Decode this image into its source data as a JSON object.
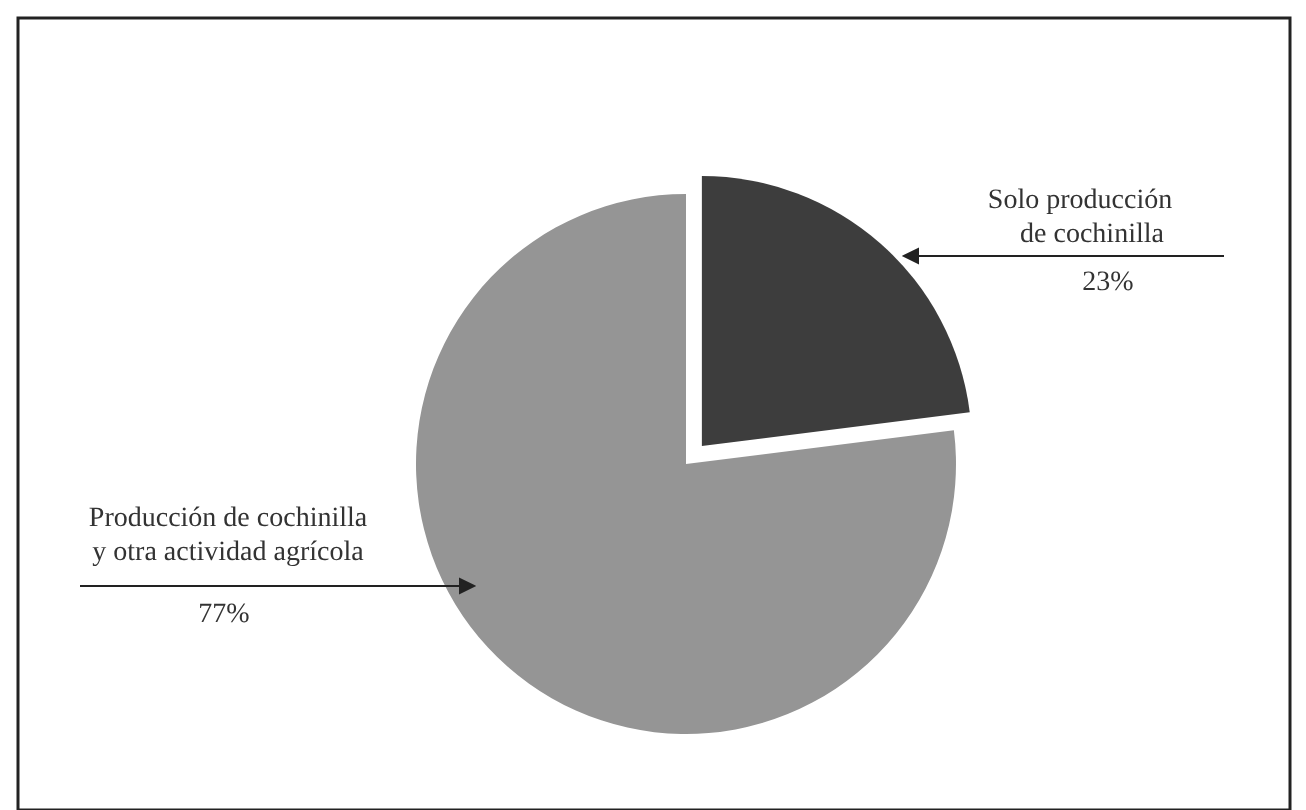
{
  "chart_data": {
    "type": "pie",
    "categories": [
      "Solo producción de cochinilla",
      "Producción de cochinilla y otra actividad agrícola"
    ],
    "values": [
      23,
      77
    ],
    "colors": [
      "#3d3d3d",
      "#959595"
    ],
    "value_labels": [
      "23%",
      "77%"
    ]
  }
}
